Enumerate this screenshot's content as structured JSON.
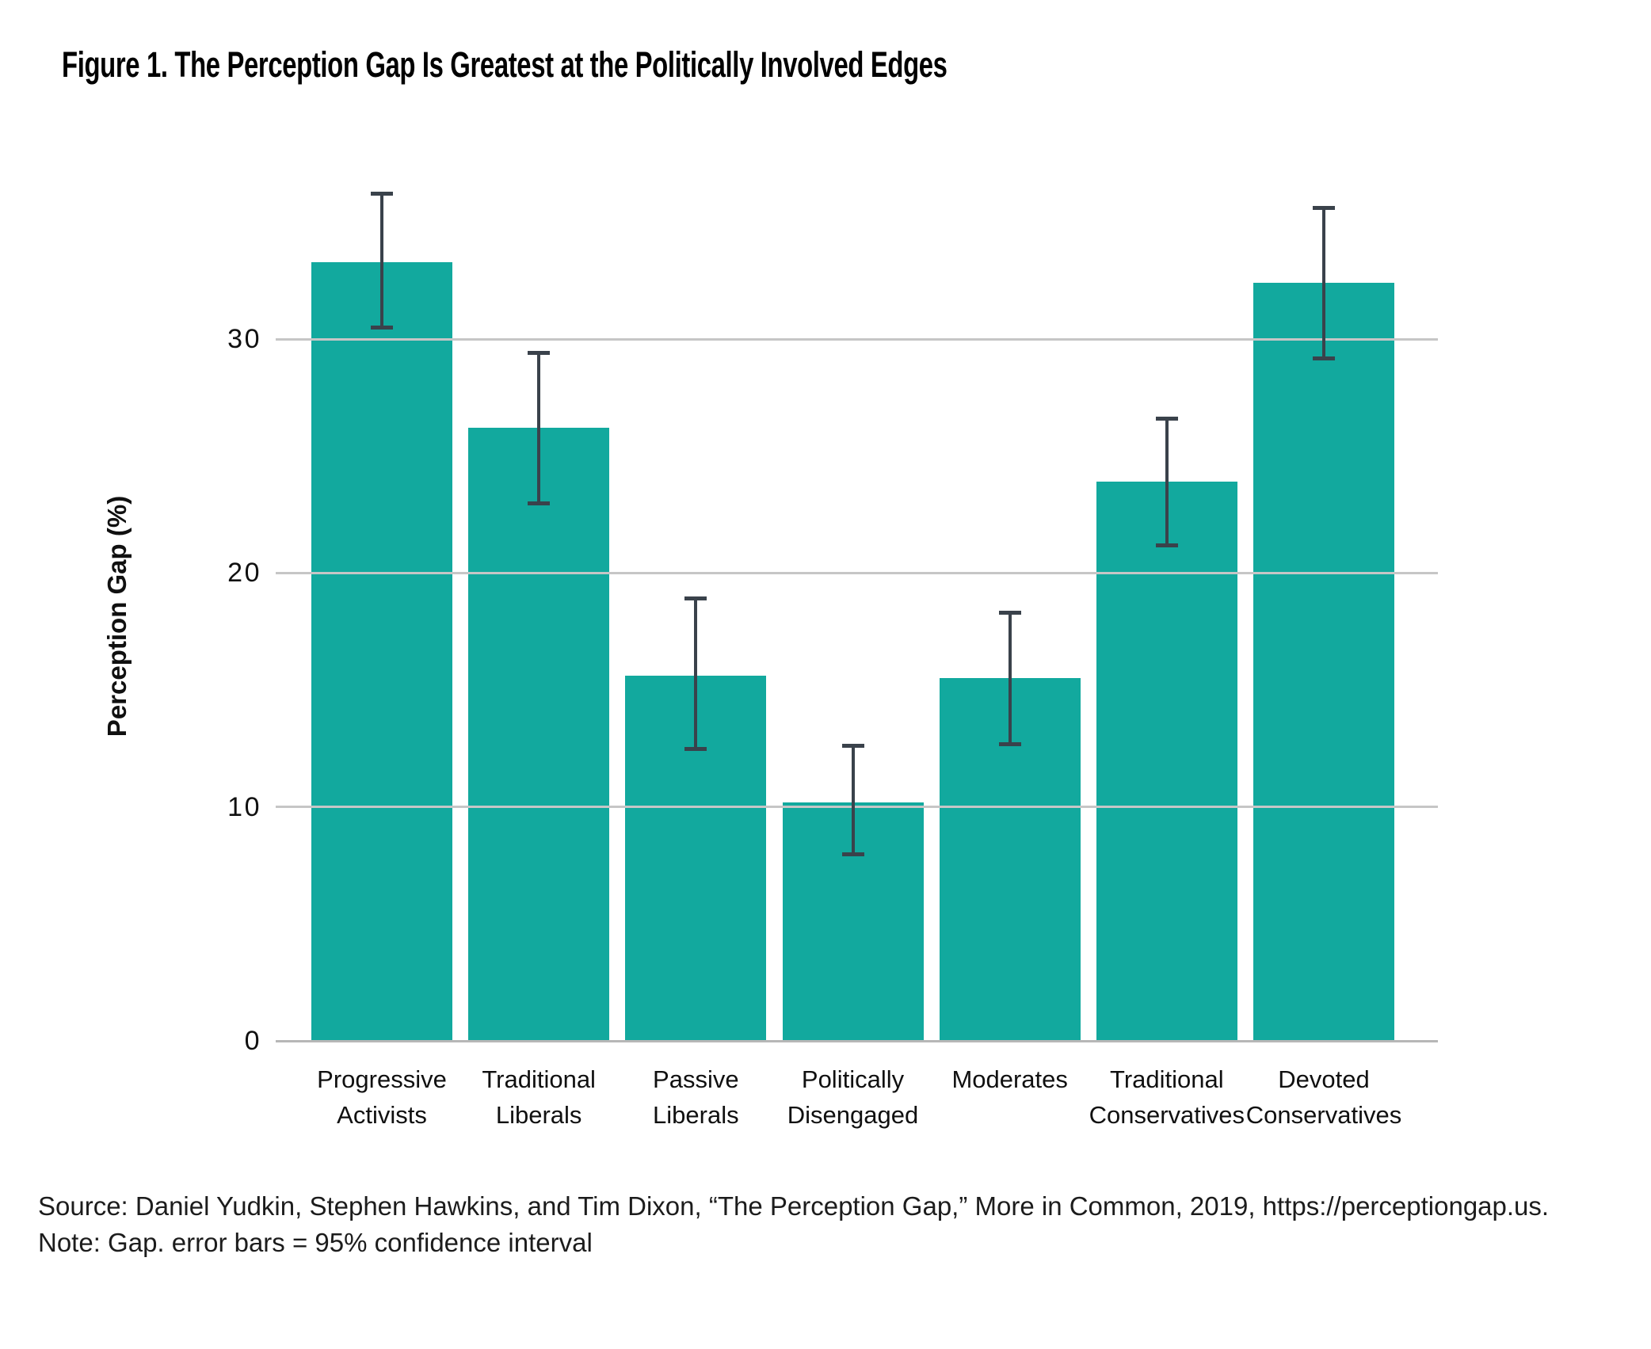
{
  "title": "Figure 1. The Perception Gap Is Greatest at the Politically Involved Edges",
  "chart_data": {
    "type": "bar",
    "title": "Figure 1. The Perception Gap Is Greatest at the Politically Involved Edges",
    "xlabel": "",
    "ylabel": "Perception Gap (%)",
    "ylim": [
      0,
      39.4
    ],
    "yticks": [
      0,
      10,
      20,
      30
    ],
    "gridlines": [
      10,
      20,
      30
    ],
    "grid": true,
    "legend": null,
    "categories": [
      "Progressive Activists",
      "Traditional Liberals",
      "Passive Liberals",
      "Politically Disengaged",
      "Moderates",
      "Traditional Conservatives",
      "Devoted Conservatives"
    ],
    "category_lines": [
      [
        "Progressive",
        "Activists"
      ],
      [
        "Traditional",
        "Liberals"
      ],
      [
        "Passive",
        "Liberals"
      ],
      [
        "Politically",
        "Disengaged"
      ],
      [
        "Moderates"
      ],
      [
        "Traditional",
        "Conservatives"
      ],
      [
        "Devoted",
        "Conservatives"
      ]
    ],
    "values": [
      33.3,
      26.2,
      15.6,
      10.2,
      15.5,
      23.9,
      32.4
    ],
    "error_bars": {
      "label": "95% confidence interval",
      "low": [
        30.4,
        22.9,
        12.4,
        7.9,
        12.6,
        21.1,
        29.1
      ],
      "high": [
        36.3,
        29.5,
        19.0,
        12.7,
        18.4,
        26.7,
        35.7
      ]
    },
    "bar_color": "#12a99e",
    "error_bar_color": "#3a424b",
    "gridline_color": "#c6c6c6"
  },
  "footer": {
    "source": "Source: Daniel Yudkin, Stephen Hawkins, and Tim Dixon, “The Perception Gap,” More in Common, 2019, https://perceptiongap.us.",
    "note": "Note: Gap. error bars = 95% confidence interval"
  }
}
